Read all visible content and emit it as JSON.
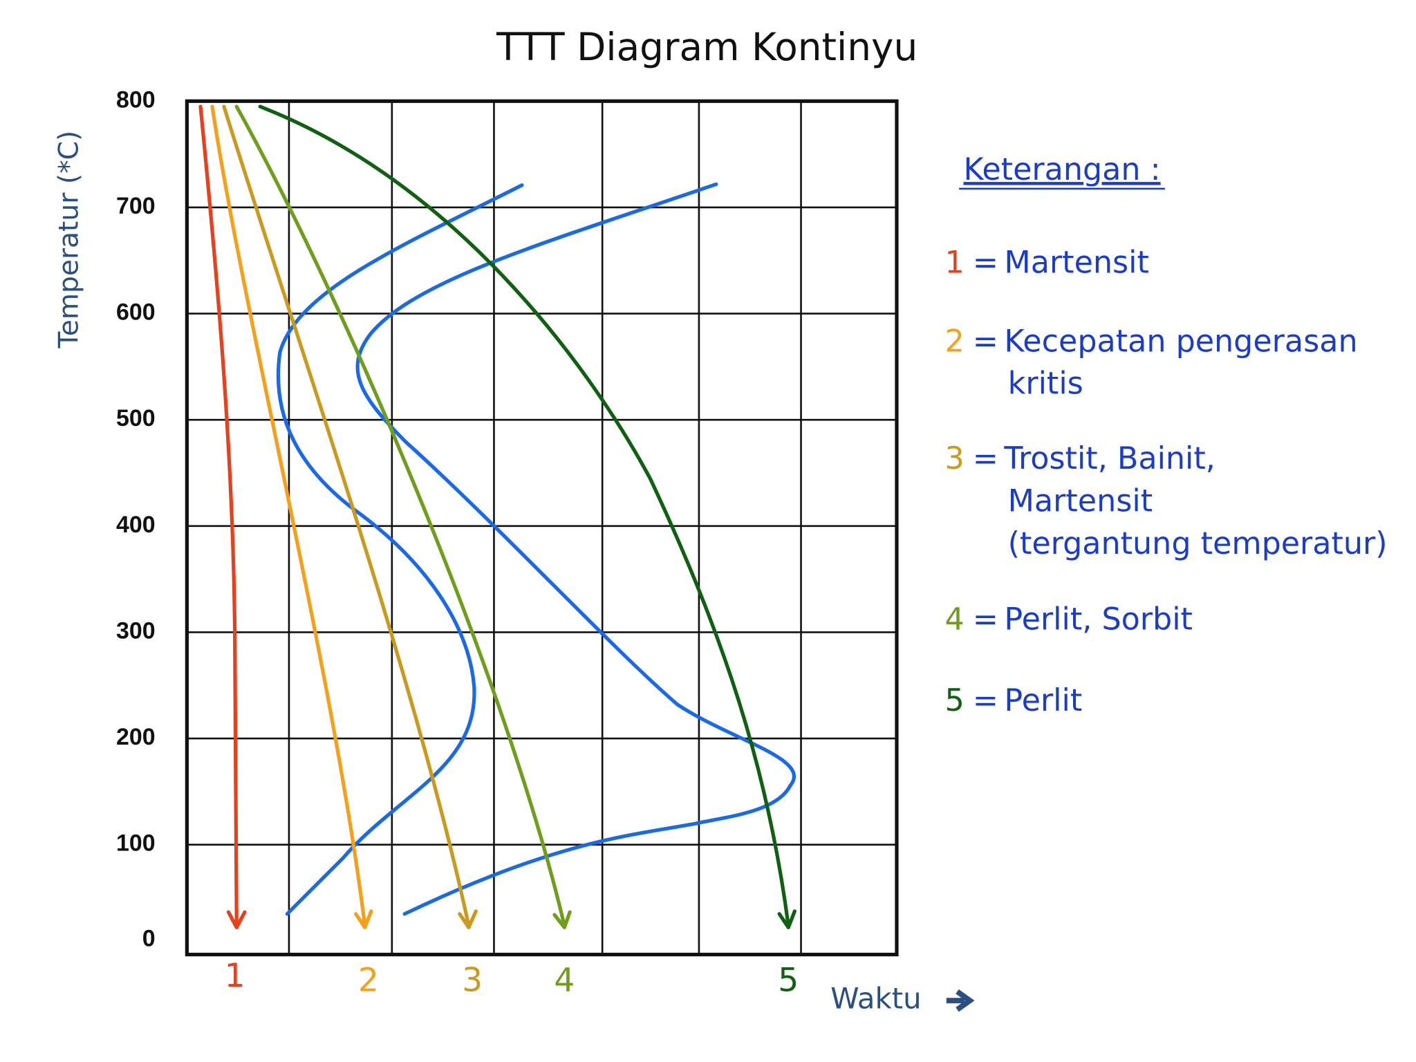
{
  "chart_data": {
    "type": "cct",
    "title": "TTT Diagram Kontinyu",
    "y_label": "Temperatur (*C)",
    "x_label": "Waktu",
    "ylim": [
      0,
      800
    ],
    "yticks": [
      0,
      100,
      200,
      300,
      400,
      500,
      600,
      700,
      800
    ],
    "grid": true,
    "transformation_color": "#1a6ae8",
    "series": [
      {
        "name": "1",
        "color": "#e8401c"
      },
      {
        "name": "2",
        "color": "#f5a01a"
      },
      {
        "name": "3",
        "color": "#c99a1e"
      },
      {
        "name": "4",
        "color": "#6e9e1c"
      },
      {
        "name": "5",
        "color": "#0f6010"
      }
    ],
    "legend": {
      "title": "Keterangan :",
      "items": [
        {
          "lines": [
            "Martensit"
          ]
        },
        {
          "lines": [
            "Kecepatan pengerasan",
            "kritis"
          ]
        },
        {
          "lines": [
            "Trostit, Bainit,",
            "Martensit",
            "(tergantung temperatur)"
          ]
        },
        {
          "lines": [
            "Perlit, Sorbit"
          ]
        },
        {
          "lines": [
            "Perlit"
          ]
        }
      ]
    }
  }
}
